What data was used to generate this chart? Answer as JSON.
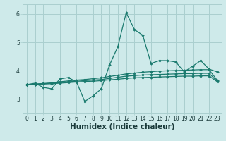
{
  "xlabel": "Humidex (Indice chaleur)",
  "background_color": "#ceeaea",
  "grid_color": "#aacfcf",
  "line_color": "#1a7a6e",
  "xlim": [
    -0.5,
    23.5
  ],
  "ylim": [
    2.5,
    6.35
  ],
  "yticks": [
    3,
    4,
    5,
    6
  ],
  "xtick_labels": [
    "0",
    "1",
    "2",
    "3",
    "4",
    "5",
    "6",
    "7",
    "8",
    "9",
    "10",
    "11",
    "12",
    "13",
    "14",
    "15",
    "16",
    "17",
    "18",
    "19",
    "20",
    "21",
    "22",
    "23"
  ],
  "series": [
    [
      3.5,
      3.55,
      3.4,
      3.35,
      3.7,
      3.75,
      3.6,
      2.9,
      3.1,
      3.35,
      4.2,
      4.85,
      6.05,
      5.45,
      5.25,
      4.25,
      4.35,
      4.35,
      4.3,
      3.95,
      4.15,
      4.35,
      4.05,
      3.95
    ],
    [
      3.5,
      3.52,
      3.54,
      3.56,
      3.6,
      3.63,
      3.66,
      3.68,
      3.71,
      3.74,
      3.79,
      3.83,
      3.88,
      3.91,
      3.94,
      3.96,
      3.98,
      3.99,
      4.0,
      4.01,
      4.02,
      4.03,
      4.03,
      3.65
    ],
    [
      3.5,
      3.51,
      3.53,
      3.55,
      3.57,
      3.6,
      3.62,
      3.64,
      3.66,
      3.68,
      3.72,
      3.76,
      3.8,
      3.82,
      3.84,
      3.85,
      3.86,
      3.87,
      3.88,
      3.89,
      3.89,
      3.9,
      3.9,
      3.62
    ],
    [
      3.5,
      3.51,
      3.52,
      3.53,
      3.55,
      3.57,
      3.59,
      3.61,
      3.62,
      3.64,
      3.67,
      3.69,
      3.72,
      3.74,
      3.75,
      3.76,
      3.77,
      3.78,
      3.79,
      3.8,
      3.8,
      3.81,
      3.81,
      3.6
    ]
  ]
}
